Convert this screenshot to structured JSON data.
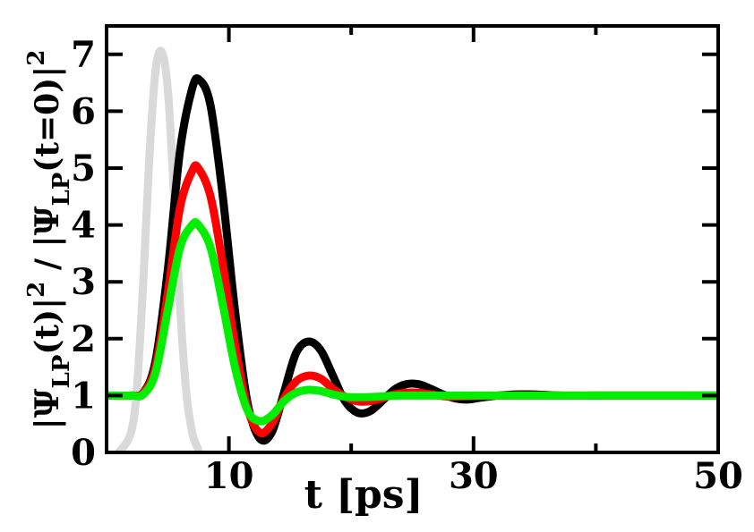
{
  "chart_data": {
    "type": "line",
    "xlabel": "t [ps]",
    "ylabel": {
      "parts": [
        "|Ψ",
        "LP",
        "(t)|",
        "2",
        " / |Ψ",
        "LP",
        "(t=0)|",
        "2"
      ]
    },
    "xlim": [
      0,
      50
    ],
    "ylim": [
      0,
      7.5
    ],
    "x_ticks": [
      10,
      30,
      50
    ],
    "x_minor_ticks": [
      20,
      40
    ],
    "y_ticks": [
      0,
      1,
      2,
      3,
      4,
      5,
      6,
      7
    ],
    "grid": false,
    "legend": "none",
    "series": [
      {
        "color": "#d9d9d9",
        "x": [
          1.0,
          2.0,
          2.5,
          3.0,
          3.5,
          4.0,
          4.5,
          5.0,
          5.5,
          6.0,
          6.5,
          7.0,
          7.5
        ],
        "y": [
          0.0,
          0.35,
          1.2,
          3.0,
          5.2,
          6.7,
          7.05,
          6.4,
          4.6,
          2.6,
          1.1,
          0.35,
          0.05
        ]
      },
      {
        "color": "#000000",
        "x": [
          0,
          2,
          3,
          4,
          5,
          6,
          7,
          7.6,
          8.5,
          9.5,
          10.5,
          11.5,
          12.5,
          13.5,
          14.5,
          15.5,
          16.5,
          17.5,
          18.5,
          19.5,
          20.5,
          21.5,
          22.5,
          23.5,
          24.5,
          25.5,
          26.5,
          27.5,
          28.5,
          29.5,
          30.5,
          32,
          33.5,
          35,
          37,
          40,
          45,
          50
        ],
        "y": [
          1.0,
          1.0,
          1.05,
          1.6,
          3.2,
          5.3,
          6.4,
          6.55,
          6.1,
          4.5,
          2.5,
          0.9,
          0.25,
          0.35,
          1.05,
          1.75,
          1.95,
          1.8,
          1.35,
          0.9,
          0.7,
          0.72,
          0.9,
          1.1,
          1.2,
          1.2,
          1.12,
          1.02,
          0.95,
          0.93,
          0.96,
          1.0,
          1.02,
          1.02,
          1.0,
          1.0,
          1.0,
          1.0
        ]
      },
      {
        "color": "#ff0000",
        "x": [
          0,
          2,
          3,
          4,
          5,
          6,
          7,
          7.5,
          8.5,
          9.5,
          10.5,
          11.5,
          12.5,
          13.5,
          14.5,
          15.5,
          16.5,
          17.5,
          18.5,
          19.5,
          20.5,
          21.5,
          22.5,
          23.5,
          24.5,
          25.5,
          26.5,
          28,
          30,
          33,
          37,
          42,
          50
        ],
        "y": [
          1.0,
          1.0,
          1.05,
          1.5,
          2.8,
          4.3,
          4.95,
          5.0,
          4.5,
          3.3,
          1.9,
          0.8,
          0.35,
          0.5,
          0.95,
          1.25,
          1.35,
          1.3,
          1.12,
          0.98,
          0.9,
          0.9,
          0.95,
          1.02,
          1.05,
          1.05,
          1.02,
          0.98,
          0.99,
          1.0,
          1.0,
          1.0,
          1.0
        ]
      },
      {
        "color": "#00ee00",
        "x": [
          0,
          2,
          3,
          4,
          5,
          6,
          7,
          7.5,
          8.5,
          9.5,
          10.5,
          11.5,
          12.5,
          13.5,
          14.5,
          15.5,
          16.5,
          17.5,
          18.5,
          19.5,
          20.5,
          22,
          24,
          27,
          30,
          35,
          40,
          50
        ],
        "y": [
          1.0,
          1.0,
          1.02,
          1.4,
          2.5,
          3.6,
          4.0,
          4.0,
          3.6,
          2.6,
          1.5,
          0.75,
          0.55,
          0.65,
          0.9,
          1.05,
          1.1,
          1.08,
          1.02,
          0.98,
          0.97,
          0.98,
          1.0,
          1.0,
          1.0,
          1.0,
          1.0,
          1.0
        ]
      }
    ]
  }
}
